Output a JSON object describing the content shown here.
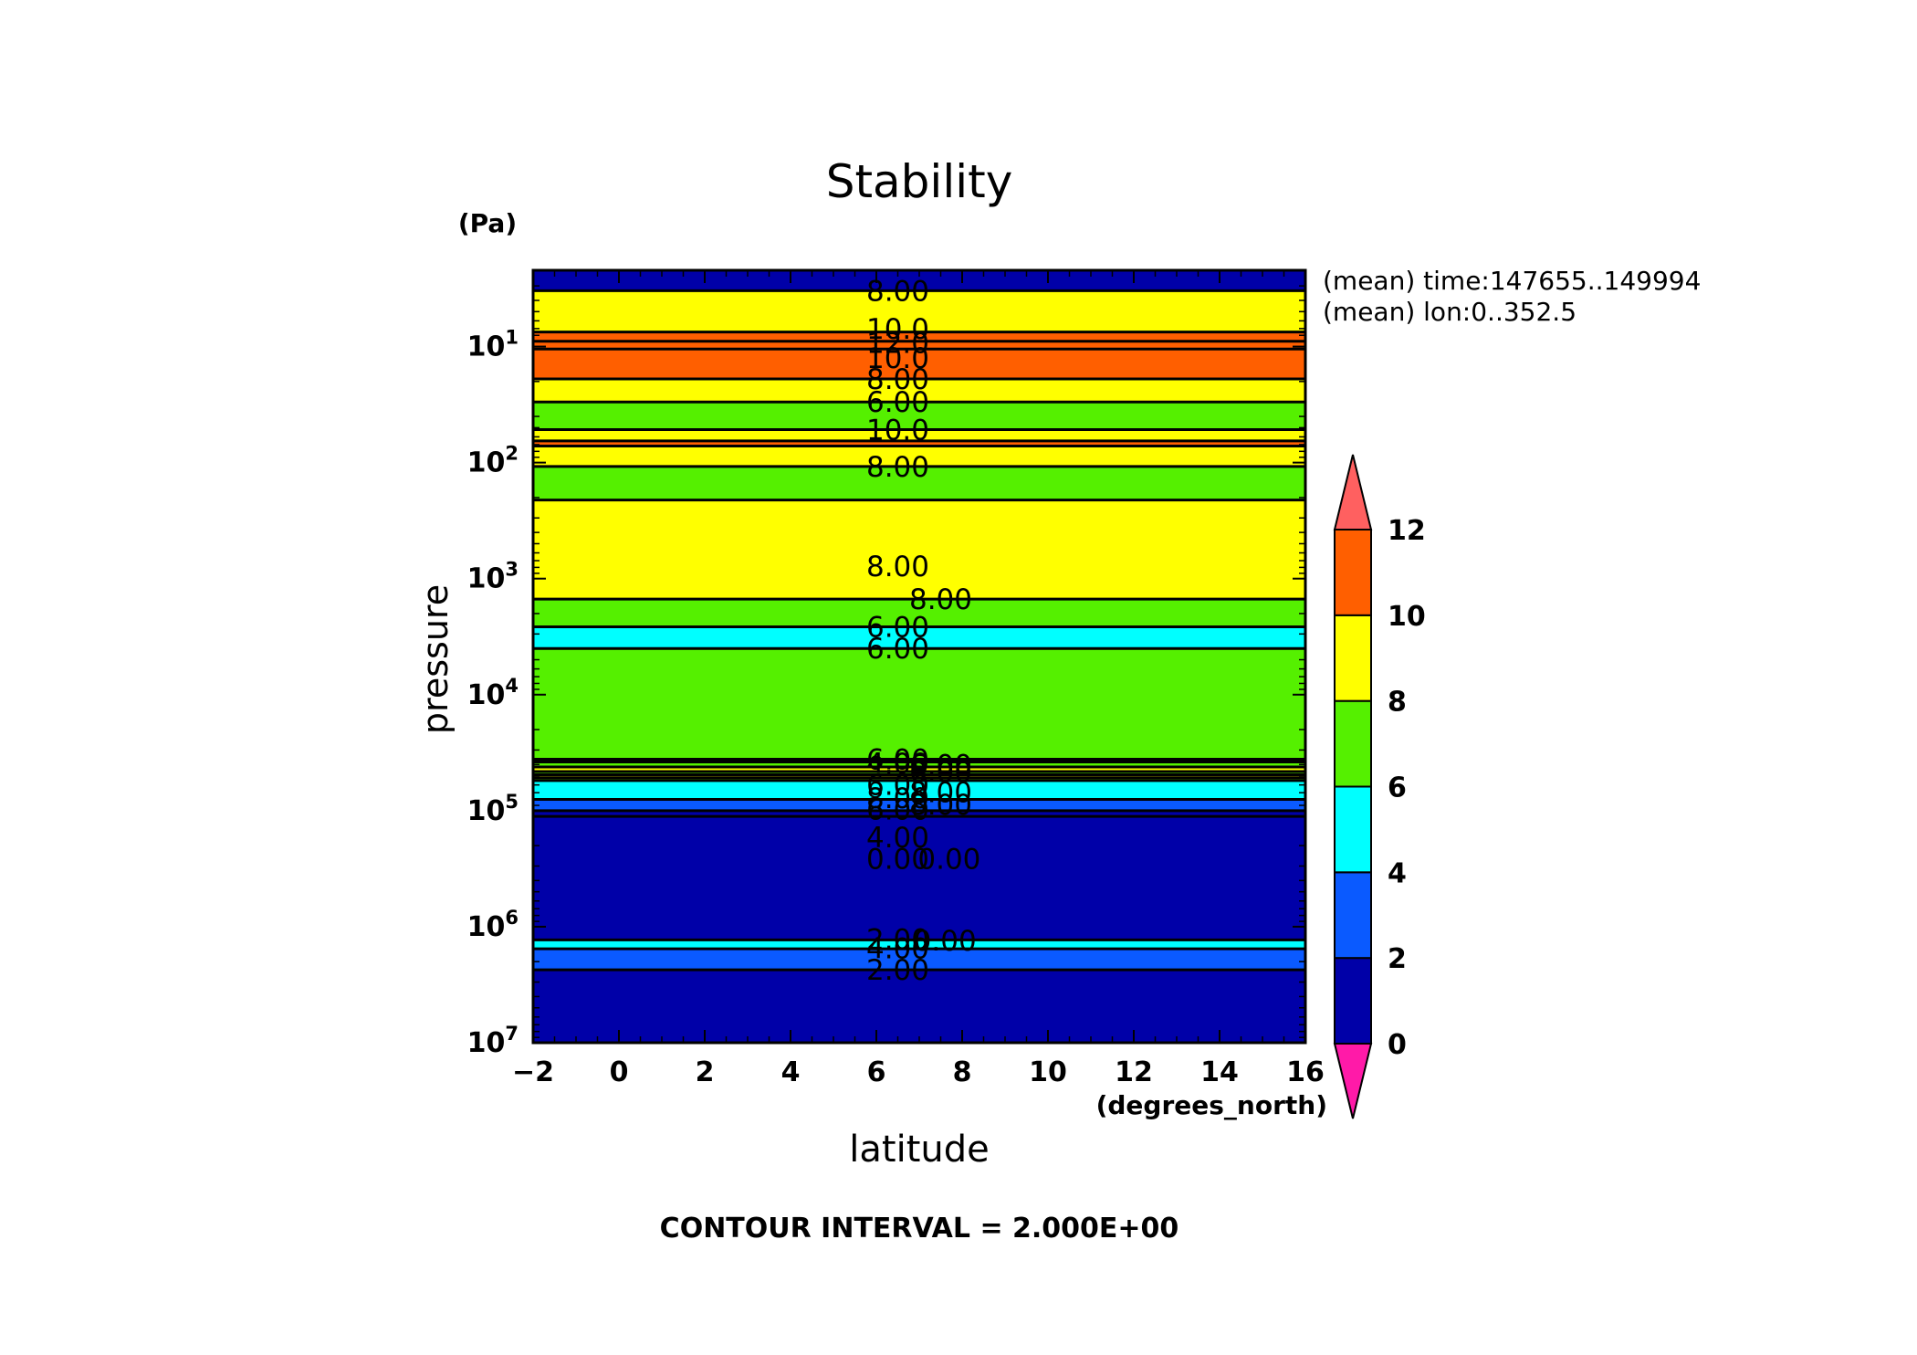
{
  "chart_data": {
    "type": "heatmap",
    "title": "Stability",
    "xlabel": "latitude",
    "xunits": "(degrees_north)",
    "ylabel": "pressure",
    "yunits": "(Pa)",
    "yscale": "log",
    "ylim": [
      10000000,
      2.2
    ],
    "xlim": [
      -2,
      16
    ],
    "x_ticks": [
      "−2",
      "0",
      "2",
      "4",
      "6",
      "8",
      "10",
      "12",
      "14",
      "16"
    ],
    "x_tick_values": [
      -2,
      0,
      2,
      4,
      6,
      8,
      10,
      12,
      14,
      16
    ],
    "y_ticks": [
      {
        "base": "10",
        "exp": "1",
        "value": 10
      },
      {
        "base": "10",
        "exp": "2",
        "value": 100
      },
      {
        "base": "10",
        "exp": "3",
        "value": 1000
      },
      {
        "base": "10",
        "exp": "4",
        "value": 10000
      },
      {
        "base": "10",
        "exp": "5",
        "value": 100000
      },
      {
        "base": "10",
        "exp": "6",
        "value": 1000000
      },
      {
        "base": "10",
        "exp": "7",
        "value": 10000000
      }
    ],
    "meta": [
      "(mean) time:147655..149994",
      "(mean) lon:0..352.5"
    ],
    "footer": "CONTOUR INTERVAL = 2.000E+00",
    "grid": false,
    "colorbar": {
      "levels": [
        "0",
        "2",
        "4",
        "6",
        "8",
        "10",
        "12"
      ],
      "level_values": [
        0,
        2,
        4,
        6,
        8,
        10,
        12
      ],
      "colors": [
        "#0000a8",
        "#0a5aff",
        "#00ffff",
        "#55f000",
        "#ffff00",
        "#ff5f00"
      ],
      "under_color": "#ff1aa8",
      "over_color": "#ff6060"
    },
    "bands": [
      {
        "top": 2.2,
        "bottom": 3.3,
        "value": 1.0,
        "color": "#0000a8"
      },
      {
        "top": 3.3,
        "bottom": 7.5,
        "value": 9.0,
        "color": "#ffff00"
      },
      {
        "top": 7.5,
        "bottom": 9.0,
        "value": 11.0,
        "color": "#ff5f00"
      },
      {
        "top": 9.0,
        "bottom": 10.5,
        "value": 13.0,
        "color": "#ff5f00"
      },
      {
        "top": 10.5,
        "bottom": 19.0,
        "value": 11.0,
        "color": "#ff5f00"
      },
      {
        "top": 19.0,
        "bottom": 30.0,
        "value": 9.0,
        "color": "#ffff00"
      },
      {
        "top": 30.0,
        "bottom": 52.0,
        "value": 7.0,
        "color": "#55f000"
      },
      {
        "top": 52.0,
        "bottom": 65.0,
        "value": 9.0,
        "color": "#ffff00"
      },
      {
        "top": 65.0,
        "bottom": 72.0,
        "value": 11.0,
        "color": "#ff5f00"
      },
      {
        "top": 72.0,
        "bottom": 108.0,
        "value": 9.0,
        "color": "#ffff00"
      },
      {
        "top": 108.0,
        "bottom": 210.0,
        "value": 7.0,
        "color": "#55f000"
      },
      {
        "top": 210.0,
        "bottom": 1500.0,
        "value": 9.0,
        "color": "#ffff00"
      },
      {
        "top": 1500.0,
        "bottom": 2600.0,
        "value": 7.0,
        "color": "#55f000"
      },
      {
        "top": 2600.0,
        "bottom": 4000.0,
        "value": 5.0,
        "color": "#00ffff"
      },
      {
        "top": 4000.0,
        "bottom": 36000.0,
        "value": 7.0,
        "color": "#55f000"
      },
      {
        "top": 36000.0,
        "bottom": 38000.0,
        "value": 5.0,
        "color": "#00ffff"
      },
      {
        "top": 38000.0,
        "bottom": 42000.0,
        "value": 7.0,
        "color": "#55f000"
      },
      {
        "top": 42000.0,
        "bottom": 46000.0,
        "value": 9.0,
        "color": "#ffff00"
      },
      {
        "top": 46000.0,
        "bottom": 49000.0,
        "value": 7.0,
        "color": "#55f000"
      },
      {
        "top": 49000.0,
        "bottom": 52000.0,
        "value": 9.0,
        "color": "#ffff00"
      },
      {
        "top": 52000.0,
        "bottom": 55000.0,
        "value": 7.0,
        "color": "#55f000"
      },
      {
        "top": 55000.0,
        "bottom": 80000.0,
        "value": 5.0,
        "color": "#00ffff"
      },
      {
        "top": 80000.0,
        "bottom": 100000.0,
        "value": 3.0,
        "color": "#0a5aff"
      },
      {
        "top": 100000.0,
        "bottom": 112000.0,
        "value": 1.0,
        "color": "#0000a8"
      },
      {
        "top": 112000.0,
        "bottom": 1300000.0,
        "value": 1.0,
        "color": "#0000a8"
      },
      {
        "top": 1300000.0,
        "bottom": 1550000.0,
        "value": 5.0,
        "color": "#00ffff"
      },
      {
        "top": 1550000.0,
        "bottom": 2350000.0,
        "value": 3.0,
        "color": "#0a5aff"
      },
      {
        "top": 2350000.0,
        "bottom": 10000000.0,
        "value": 1.0,
        "color": "#0000a8"
      }
    ],
    "contours": [
      3.3,
      7.5,
      9.0,
      10.5,
      19.0,
      30.0,
      52.0,
      65.0,
      72.0,
      108.0,
      210.0,
      1500.0,
      2600.0,
      4000.0,
      36000.0,
      38000.0,
      42000.0,
      46000.0,
      49000.0,
      52000.0,
      55000.0,
      80000.0,
      100000.0,
      112000.0,
      1300000.0,
      1550000.0,
      2350000.0
    ],
    "contour_labels": [
      {
        "text": "8.00",
        "lat": 6.5,
        "p": 3.3
      },
      {
        "text": "10.0",
        "lat": 6.5,
        "p": 7.0
      },
      {
        "text": "12.0",
        "lat": 6.5,
        "p": 9.3
      },
      {
        "text": "10.0",
        "lat": 6.5,
        "p": 12.5
      },
      {
        "text": "8.00",
        "lat": 6.5,
        "p": 19.0
      },
      {
        "text": "6.00",
        "lat": 6.5,
        "p": 30.0
      },
      {
        "text": "10.0",
        "lat": 6.5,
        "p": 52.0
      },
      {
        "text": "8.00",
        "lat": 6.5,
        "p": 108.0
      },
      {
        "text": "8.00",
        "lat": 6.5,
        "p": 780.0
      },
      {
        "text": "8.00",
        "lat": 7.5,
        "p": 1500.0
      },
      {
        "text": "6.00",
        "lat": 6.5,
        "p": 2600.0
      },
      {
        "text": "6.00",
        "lat": 6.5,
        "p": 4000.0
      },
      {
        "text": "6.00",
        "lat": 6.5,
        "p": 36000.0
      },
      {
        "text": "4.00",
        "lat": 6.5,
        "p": 39000.0
      },
      {
        "text": "6.00",
        "lat": 7.5,
        "p": 40000.0
      },
      {
        "text": "6.00",
        "lat": 7.5,
        "p": 46000.0
      },
      {
        "text": "6.00",
        "lat": 6.5,
        "p": 60000.0
      },
      {
        "text": "8.00",
        "lat": 7.5,
        "p": 69000.0
      },
      {
        "text": "8.00",
        "lat": 6.5,
        "p": 78000.0
      },
      {
        "text": "8.00",
        "lat": 7.5,
        "p": 88000.0
      },
      {
        "text": "6.00",
        "lat": 6.5,
        "p": 98000.0
      },
      {
        "text": "4.00",
        "lat": 6.5,
        "p": 170000.0
      },
      {
        "text": "0.00",
        "lat": 6.5,
        "p": 260000.0
      },
      {
        "text": "0.00",
        "lat": 7.7,
        "p": 260000.0
      },
      {
        "text": "2.00",
        "lat": 6.5,
        "p": 1280000.0
      },
      {
        "text": "0.00",
        "lat": 7.6,
        "p": 1320000.0
      },
      {
        "text": "4.00",
        "lat": 6.5,
        "p": 1530000.0
      },
      {
        "text": "2.00",
        "lat": 6.5,
        "p": 2350000.0
      }
    ]
  }
}
